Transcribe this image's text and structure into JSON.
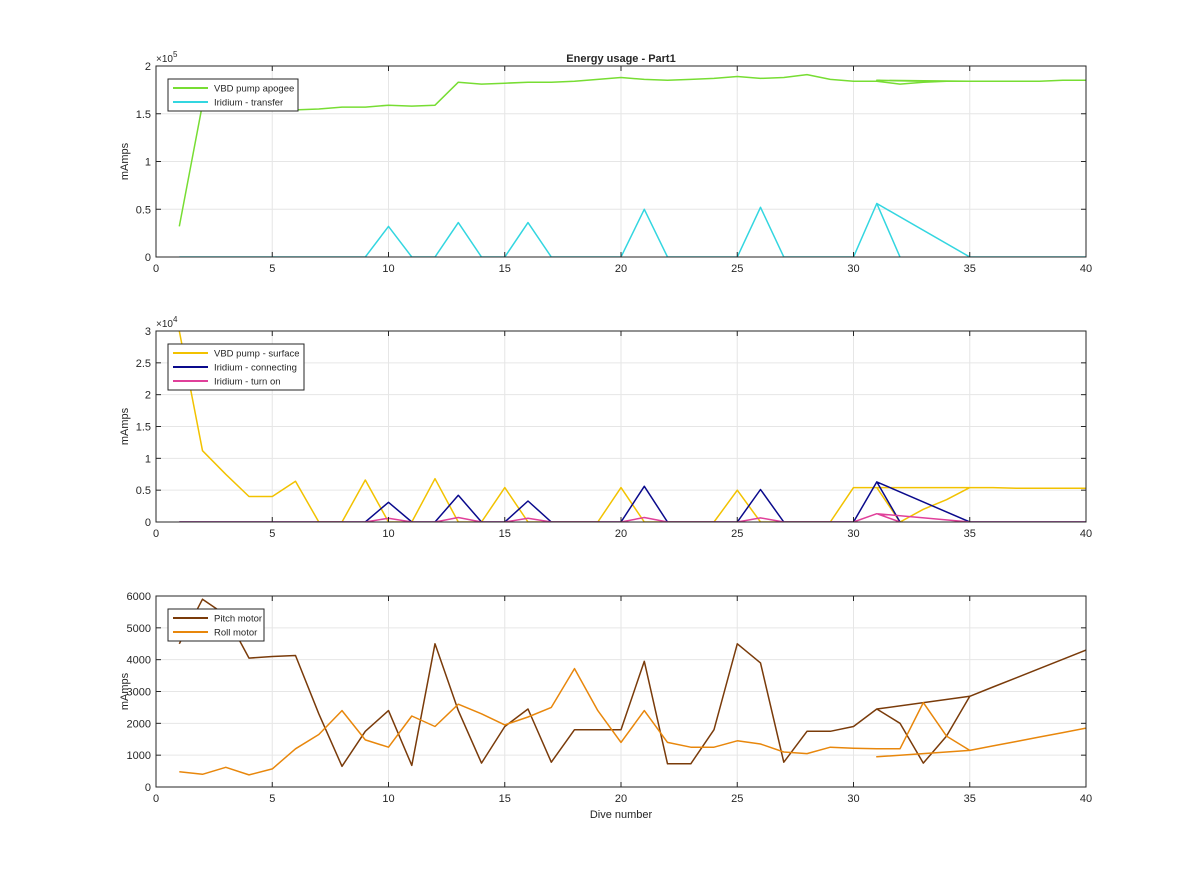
{
  "figure": {
    "title": "Energy usage - Part1",
    "xlabel": "Dive number"
  },
  "chart_data": [
    {
      "type": "line",
      "title": "Energy usage - Part1",
      "xlabel": "",
      "ylabel": "mAmps",
      "xlim": [
        0,
        40
      ],
      "ylim": [
        0,
        200000
      ],
      "exponent_label": "×10",
      "exponent_power": "5",
      "xticks": [
        "0",
        "5",
        "10",
        "15",
        "20",
        "25",
        "30",
        "35",
        "40"
      ],
      "yticks": [
        0,
        50000,
        100000,
        150000,
        200000
      ],
      "ytick_labels": [
        "0",
        "0.5",
        "1",
        "1.5",
        "2"
      ],
      "grid": true,
      "legend_position": "top-left",
      "series": [
        {
          "name": "VBD pump apogee",
          "color": "#77dd33",
          "x": [
            1,
            2,
            3,
            4,
            5,
            6,
            7,
            8,
            9,
            10,
            11,
            12,
            13,
            14,
            15,
            16,
            17,
            18,
            19,
            20,
            21,
            22,
            23,
            24,
            25,
            26,
            27,
            28,
            29,
            30,
            31,
            32,
            33,
            34,
            35,
            31,
            33,
            34,
            35,
            36,
            37,
            38,
            39,
            40
          ],
          "y": [
            32000,
            160000,
            157000,
            154000,
            154000,
            154000,
            155000,
            157000,
            157000,
            159000,
            158000,
            159000,
            183000,
            181000,
            182000,
            183000,
            183000,
            184000,
            186000,
            188000,
            186000,
            185000,
            186000,
            187000,
            189000,
            187000,
            188000,
            191000,
            186000,
            184000,
            184000,
            181000,
            183000,
            184000,
            184000,
            185000,
            184000,
            184000,
            184000,
            184000,
            184000,
            184000,
            185000,
            185000
          ]
        },
        {
          "name": "Iridium - transfer",
          "color": "#33d6e0",
          "x": [
            1,
            2,
            3,
            4,
            5,
            6,
            7,
            8,
            9,
            10,
            11,
            12,
            13,
            14,
            15,
            16,
            17,
            18,
            19,
            20,
            21,
            22,
            23,
            24,
            25,
            26,
            27,
            28,
            29,
            30,
            31,
            32,
            31,
            35,
            36,
            37,
            38,
            39,
            40
          ],
          "y": [
            0,
            0,
            0,
            0,
            0,
            0,
            0,
            0,
            0,
            32000,
            0,
            0,
            36000,
            0,
            0,
            36000,
            0,
            0,
            0,
            0,
            50000,
            0,
            0,
            0,
            0,
            52000,
            0,
            0,
            0,
            0,
            56000,
            0,
            56000,
            0,
            0,
            0,
            0,
            0,
            0
          ]
        }
      ]
    },
    {
      "type": "line",
      "title": "",
      "xlabel": "",
      "ylabel": "mAmps",
      "xlim": [
        0,
        40
      ],
      "ylim": [
        0,
        30000
      ],
      "exponent_label": "×10",
      "exponent_power": "4",
      "xticks": [
        "0",
        "5",
        "10",
        "15",
        "20",
        "25",
        "30",
        "35",
        "40"
      ],
      "yticks": [
        0,
        5000,
        10000,
        15000,
        20000,
        25000,
        30000
      ],
      "ytick_labels": [
        "0",
        "0.5",
        "1",
        "1.5",
        "2",
        "2.5",
        "3"
      ],
      "grid": true,
      "legend_position": "top-left",
      "series": [
        {
          "name": "VBD pump - surface",
          "color": "#f2c200",
          "x": [
            1,
            2,
            3,
            4,
            5,
            6,
            7,
            8,
            9,
            10,
            11,
            12,
            13,
            14,
            15,
            16,
            17,
            18,
            19,
            20,
            21,
            22,
            23,
            24,
            25,
            26,
            27,
            28,
            29,
            30,
            31,
            32,
            33,
            34,
            35,
            31,
            36,
            37,
            38,
            39,
            40
          ],
          "y": [
            30000,
            11200,
            7500,
            4000,
            4000,
            6400,
            0,
            0,
            6600,
            0,
            0,
            6800,
            0,
            0,
            5400,
            0,
            0,
            0,
            0,
            5400,
            0,
            0,
            0,
            0,
            5000,
            0,
            0,
            0,
            0,
            5400,
            5400,
            0,
            2000,
            3500,
            5400,
            5400,
            5400,
            5300,
            5300,
            5300,
            5300
          ]
        },
        {
          "name": "Iridium - connecting",
          "color": "#0a0a8c",
          "x": [
            1,
            2,
            3,
            4,
            5,
            6,
            7,
            8,
            9,
            10,
            11,
            12,
            13,
            14,
            15,
            16,
            17,
            18,
            19,
            20,
            21,
            22,
            23,
            24,
            25,
            26,
            27,
            28,
            29,
            30,
            31,
            32,
            31,
            35,
            36,
            37,
            38,
            39,
            40
          ],
          "y": [
            0,
            0,
            0,
            0,
            0,
            0,
            0,
            0,
            0,
            3100,
            0,
            0,
            4200,
            0,
            0,
            3300,
            0,
            0,
            0,
            0,
            5600,
            0,
            0,
            0,
            0,
            5100,
            0,
            0,
            0,
            0,
            6300,
            0,
            6300,
            0,
            0,
            0,
            0,
            0,
            0
          ]
        },
        {
          "name": "Iridium - turn on",
          "color": "#e0409a",
          "x": [
            1,
            2,
            3,
            4,
            5,
            6,
            7,
            8,
            9,
            10,
            11,
            12,
            13,
            14,
            15,
            16,
            17,
            18,
            19,
            20,
            21,
            22,
            23,
            24,
            25,
            26,
            27,
            28,
            29,
            30,
            31,
            32,
            31,
            35,
            36,
            37,
            38,
            39,
            40
          ],
          "y": [
            0,
            0,
            0,
            0,
            0,
            0,
            0,
            0,
            0,
            600,
            0,
            0,
            700,
            0,
            0,
            600,
            0,
            0,
            0,
            0,
            700,
            0,
            0,
            0,
            0,
            650,
            0,
            0,
            0,
            0,
            1300,
            0,
            1300,
            0,
            0,
            0,
            0,
            0,
            0
          ]
        }
      ]
    },
    {
      "type": "line",
      "title": "",
      "xlabel": "Dive number",
      "ylabel": "mAmps",
      "xlim": [
        0,
        40
      ],
      "ylim": [
        0,
        6000
      ],
      "exponent_label": "",
      "exponent_power": "",
      "xticks": [
        "0",
        "5",
        "10",
        "15",
        "20",
        "25",
        "30",
        "35",
        "40"
      ],
      "yticks": [
        0,
        1000,
        2000,
        3000,
        4000,
        5000,
        6000
      ],
      "ytick_labels": [
        "0",
        "1000",
        "2000",
        "3000",
        "4000",
        "5000",
        "6000"
      ],
      "grid": true,
      "legend_position": "top-left",
      "series": [
        {
          "name": "Pitch motor",
          "color": "#7a3b0a",
          "x": [
            1,
            2,
            3,
            4,
            5,
            6,
            7,
            8,
            9,
            10,
            11,
            12,
            13,
            14,
            15,
            16,
            17,
            18,
            19,
            20,
            21,
            22,
            23,
            24,
            25,
            26,
            27,
            28,
            29,
            30,
            31,
            32,
            33,
            34,
            35,
            31,
            35,
            36,
            37,
            38,
            39,
            40
          ],
          "y": [
            4500,
            5900,
            5400,
            4050,
            4100,
            4130,
            2300,
            650,
            1750,
            2400,
            680,
            4500,
            2400,
            750,
            1900,
            2450,
            780,
            1800,
            1800,
            1800,
            3950,
            730,
            730,
            1800,
            4500,
            3900,
            780,
            1750,
            1750,
            1900,
            2450,
            2000,
            750,
            1600,
            2850,
            2450,
            2850,
            3140,
            3430,
            3720,
            4010,
            4300
          ]
        },
        {
          "name": "Roll motor",
          "color": "#e8870c",
          "x": [
            1,
            2,
            3,
            4,
            5,
            6,
            7,
            8,
            9,
            10,
            11,
            12,
            13,
            14,
            15,
            16,
            17,
            18,
            19,
            20,
            21,
            22,
            23,
            24,
            25,
            26,
            27,
            28,
            29,
            30,
            31,
            32,
            33,
            34,
            35,
            31,
            35,
            36,
            37,
            38,
            39,
            40
          ],
          "y": [
            480,
            400,
            620,
            380,
            570,
            1200,
            1650,
            2400,
            1480,
            1250,
            2230,
            1900,
            2600,
            2300,
            1950,
            2200,
            2500,
            3720,
            2400,
            1400,
            2400,
            1400,
            1250,
            1250,
            1450,
            1350,
            1100,
            1050,
            1250,
            1220,
            1200,
            1200,
            2650,
            1600,
            1150,
            950,
            1150,
            1290,
            1430,
            1570,
            1710,
            1850
          ]
        }
      ]
    }
  ]
}
